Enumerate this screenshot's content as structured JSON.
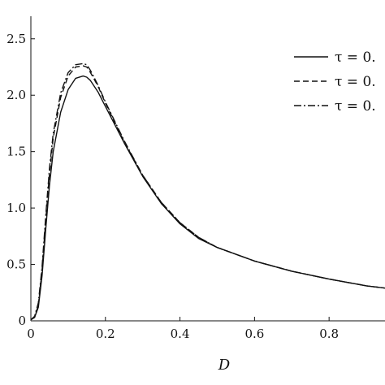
{
  "chart_data": {
    "type": "line",
    "title": "",
    "xlabel": "D",
    "ylabel": "",
    "xlim": [
      0,
      0.95
    ],
    "ylim": [
      0,
      2.7
    ],
    "grid": false,
    "legend_placement": "top-right",
    "x_ticks": [
      {
        "value": 0,
        "label": "0"
      },
      {
        "value": 0.2,
        "label": "0.2"
      },
      {
        "value": 0.4,
        "label": "0.4"
      },
      {
        "value": 0.6,
        "label": "0.6"
      },
      {
        "value": 0.8,
        "label": "0.8"
      }
    ],
    "y_ticks": [
      {
        "value": 0,
        "label": "0"
      },
      {
        "value": 0.5,
        "label": "0.5"
      },
      {
        "value": 1.0,
        "label": "1.0"
      },
      {
        "value": 1.5,
        "label": "1.5"
      },
      {
        "value": 2.0,
        "label": "2.0"
      },
      {
        "value": 2.5,
        "label": "2.5"
      }
    ],
    "series": [
      {
        "name": "τ = 0.",
        "style": "solid",
        "x": [
          0,
          0.01,
          0.02,
          0.03,
          0.04,
          0.05,
          0.06,
          0.08,
          0.1,
          0.12,
          0.14,
          0.15,
          0.16,
          0.18,
          0.2,
          0.25,
          0.3,
          0.35,
          0.4,
          0.45,
          0.5,
          0.6,
          0.7,
          0.8,
          0.9,
          0.95
        ],
        "y": [
          0.01,
          0.03,
          0.12,
          0.4,
          0.82,
          1.2,
          1.5,
          1.85,
          2.05,
          2.15,
          2.17,
          2.16,
          2.13,
          2.03,
          1.9,
          1.58,
          1.28,
          1.04,
          0.86,
          0.73,
          0.65,
          0.53,
          0.44,
          0.37,
          0.31,
          0.29
        ]
      },
      {
        "name": "τ = 0.",
        "style": "dashed",
        "x": [
          0,
          0.01,
          0.02,
          0.03,
          0.04,
          0.05,
          0.06,
          0.08,
          0.1,
          0.12,
          0.14,
          0.15,
          0.16,
          0.18,
          0.2,
          0.25,
          0.3,
          0.35,
          0.4,
          0.45,
          0.5,
          0.6,
          0.7,
          0.8,
          0.9,
          0.95
        ],
        "y": [
          0.01,
          0.03,
          0.14,
          0.45,
          0.9,
          1.3,
          1.62,
          1.98,
          2.17,
          2.25,
          2.26,
          2.25,
          2.2,
          2.08,
          1.93,
          1.59,
          1.29,
          1.05,
          0.87,
          0.74,
          0.65,
          0.53,
          0.44,
          0.37,
          0.31,
          0.29
        ]
      },
      {
        "name": "τ = 0.",
        "style": "dashdot",
        "x": [
          0,
          0.01,
          0.02,
          0.03,
          0.04,
          0.05,
          0.06,
          0.08,
          0.1,
          0.12,
          0.14,
          0.15,
          0.16,
          0.18,
          0.2,
          0.25,
          0.3,
          0.35,
          0.4,
          0.45,
          0.5,
          0.6,
          0.7,
          0.8,
          0.9,
          0.95
        ],
        "y": [
          0.01,
          0.04,
          0.16,
          0.48,
          0.94,
          1.35,
          1.66,
          2.02,
          2.2,
          2.27,
          2.28,
          2.27,
          2.22,
          2.09,
          1.94,
          1.6,
          1.29,
          1.05,
          0.87,
          0.74,
          0.65,
          0.53,
          0.44,
          0.37,
          0.31,
          0.29
        ]
      }
    ]
  }
}
